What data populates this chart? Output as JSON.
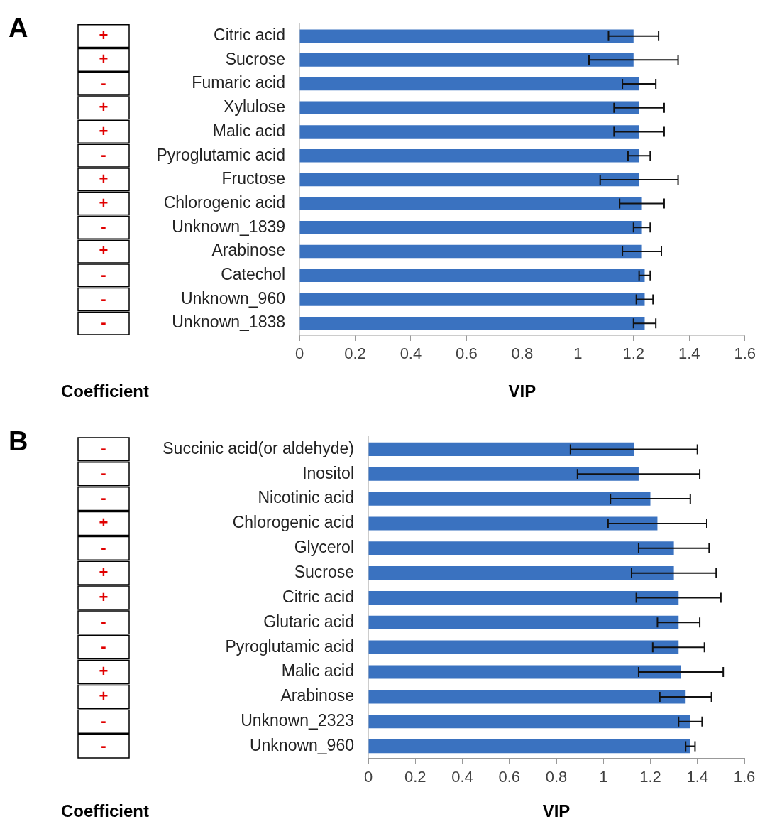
{
  "chart_data": [
    {
      "type": "bar",
      "orientation": "horizontal",
      "title": "A",
      "xlabel": "VIP",
      "legend": false,
      "grid": false,
      "categories": [
        "Citric acid",
        "Sucrose",
        "Fumaric acid",
        "Xylulose",
        "Malic acid",
        "Pyroglutamic acid",
        "Fructose",
        "Chlorogenic acid",
        "Unknown_1839",
        "Arabinose",
        "Catechol",
        "Unknown_960",
        "Unknown_1838"
      ],
      "values": [
        1.2,
        1.2,
        1.22,
        1.22,
        1.22,
        1.22,
        1.22,
        1.23,
        1.23,
        1.23,
        1.24,
        1.24,
        1.24
      ],
      "errors": [
        0.09,
        0.16,
        0.06,
        0.09,
        0.09,
        0.04,
        0.14,
        0.08,
        0.03,
        0.07,
        0.02,
        0.03,
        0.04
      ],
      "color": "#3a72c0",
      "xlim": [
        0,
        1.6
      ],
      "xticks": [
        0,
        0.2,
        0.4,
        0.6,
        0.8,
        1,
        1.2,
        1.4,
        1.6
      ],
      "annotations": [
        "Coefficient",
        "+",
        "+",
        "-",
        "+",
        "+",
        "-",
        "+",
        "+",
        "-",
        "+",
        "-",
        "-",
        "-"
      ]
    },
    {
      "type": "bar",
      "orientation": "horizontal",
      "title": "B",
      "xlabel": "VIP",
      "legend": false,
      "grid": false,
      "categories": [
        "Succinic acid(or aldehyde)",
        "Inositol",
        "Nicotinic acid",
        "Chlorogenic acid",
        "Glycerol",
        "Sucrose",
        "Citric acid",
        "Glutaric acid",
        "Pyroglutamic acid",
        "Malic acid",
        "Arabinose",
        "Unknown_2323",
        "Unknown_960"
      ],
      "values": [
        1.13,
        1.15,
        1.2,
        1.23,
        1.3,
        1.3,
        1.32,
        1.32,
        1.32,
        1.33,
        1.35,
        1.37,
        1.37
      ],
      "errors": [
        0.27,
        0.26,
        0.17,
        0.21,
        0.15,
        0.18,
        0.18,
        0.09,
        0.11,
        0.18,
        0.11,
        0.05,
        0.02
      ],
      "color": "#3a72c0",
      "xlim": [
        0,
        1.6
      ],
      "xticks": [
        0,
        0.2,
        0.4,
        0.6,
        0.8,
        1,
        1.2,
        1.4,
        1.6
      ],
      "annotations": [
        "Coefficient",
        "-",
        "-",
        "-",
        "+",
        "-",
        "+",
        "+",
        "-",
        "-",
        "+",
        "+",
        "-",
        "-"
      ]
    }
  ]
}
